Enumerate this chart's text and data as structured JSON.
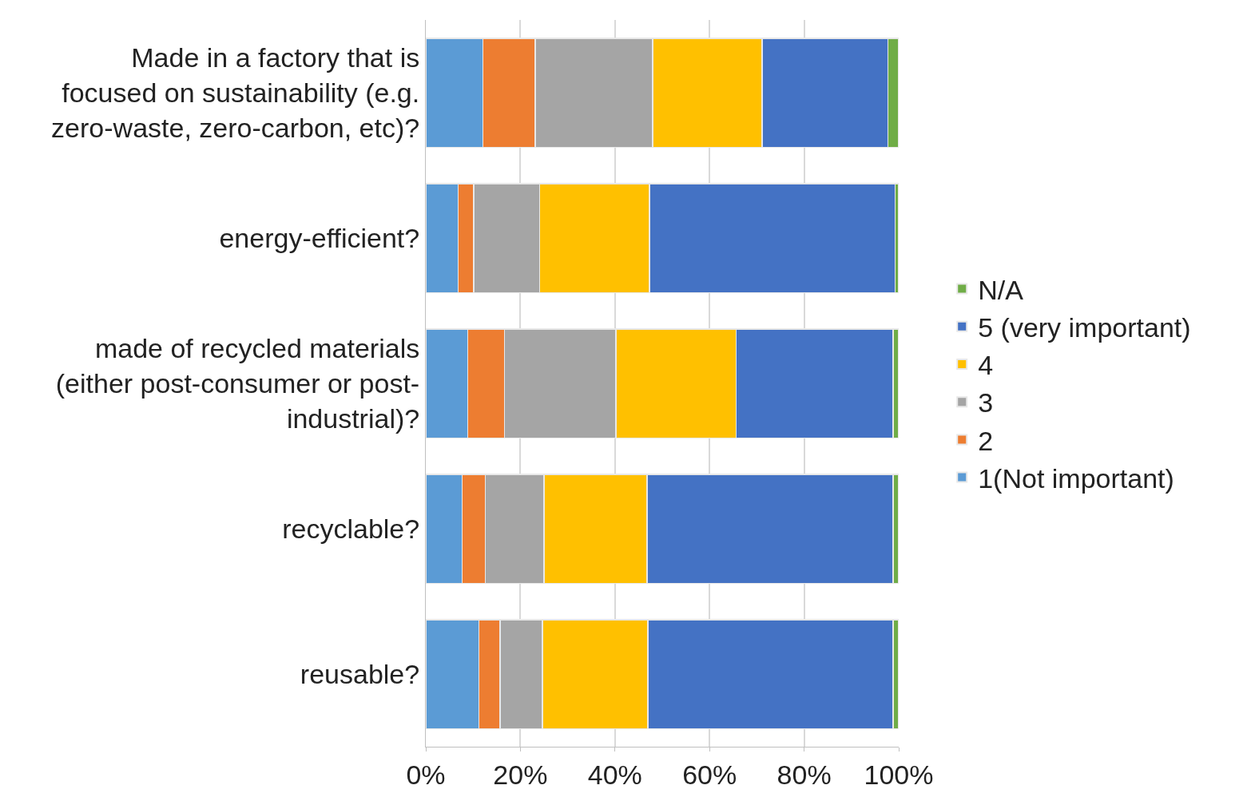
{
  "chart_data": {
    "type": "bar",
    "orientation": "horizontal",
    "stacked": true,
    "categories": [
      "Made in a factory that is focused on sustainability (e.g. zero-waste, zero-carbon, etc)?",
      "energy-efficient?",
      "made of recycled materials (either post-consumer or post-industrial)?",
      "recyclable?",
      "reusable?"
    ],
    "series": [
      {
        "name": "1(Not important)",
        "color": "#5b9bd5",
        "values": [
          12.1,
          6.8,
          8.9,
          7.7,
          11.2
        ]
      },
      {
        "name": "2",
        "color": "#ed7d31",
        "values": [
          11.0,
          3.3,
          7.7,
          4.9,
          4.5
        ]
      },
      {
        "name": "3",
        "color": "#a5a5a5",
        "values": [
          24.9,
          14.0,
          23.6,
          12.4,
          9.0
        ]
      },
      {
        "name": "4",
        "color": "#ffc000",
        "values": [
          23.1,
          23.2,
          25.4,
          21.8,
          22.3
        ]
      },
      {
        "name": "5 (very important)",
        "color": "#4472c4",
        "values": [
          26.6,
          51.9,
          33.2,
          52.0,
          51.8
        ]
      },
      {
        "name": "N/A",
        "color": "#70ad47",
        "values": [
          2.3,
          0.8,
          1.2,
          1.2,
          1.2
        ]
      }
    ],
    "xlim": [
      0,
      100
    ],
    "xticks": [
      {
        "value": 0,
        "label": "0%"
      },
      {
        "value": 20,
        "label": "20%"
      },
      {
        "value": 40,
        "label": "40%"
      },
      {
        "value": 60,
        "label": "60%"
      },
      {
        "value": 80,
        "label": "80%"
      },
      {
        "value": 100,
        "label": "100%"
      }
    ],
    "grid": "x",
    "legend": "right"
  }
}
